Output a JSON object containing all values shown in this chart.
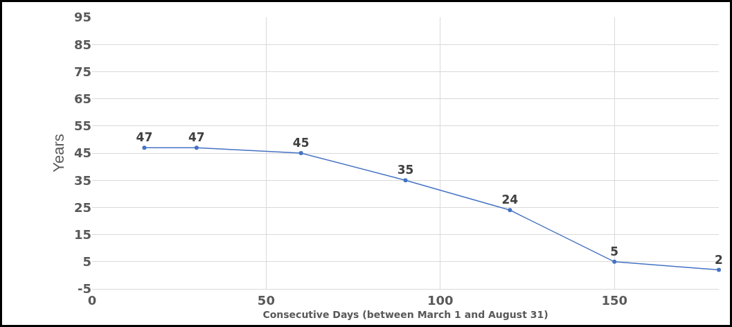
{
  "chart_data": {
    "type": "line",
    "xlabel": "Consecutive Days (between March 1 and August 31)",
    "ylabel": "Years",
    "x": [
      15,
      30,
      60,
      90,
      120,
      150,
      180
    ],
    "series": [
      {
        "color": "#4472c4",
        "values": [
          47,
          47,
          45,
          35,
          24,
          5,
          2
        ]
      }
    ],
    "xlim": [
      0,
      180
    ],
    "xticks": [
      0,
      50,
      100,
      150
    ],
    "ylim": [
      -5,
      95
    ],
    "yticks": [
      -5,
      5,
      15,
      25,
      35,
      45,
      55,
      65,
      75,
      85,
      95
    ],
    "grid": true,
    "marker": "circle",
    "line_style": "solid",
    "data_labels": true
  }
}
